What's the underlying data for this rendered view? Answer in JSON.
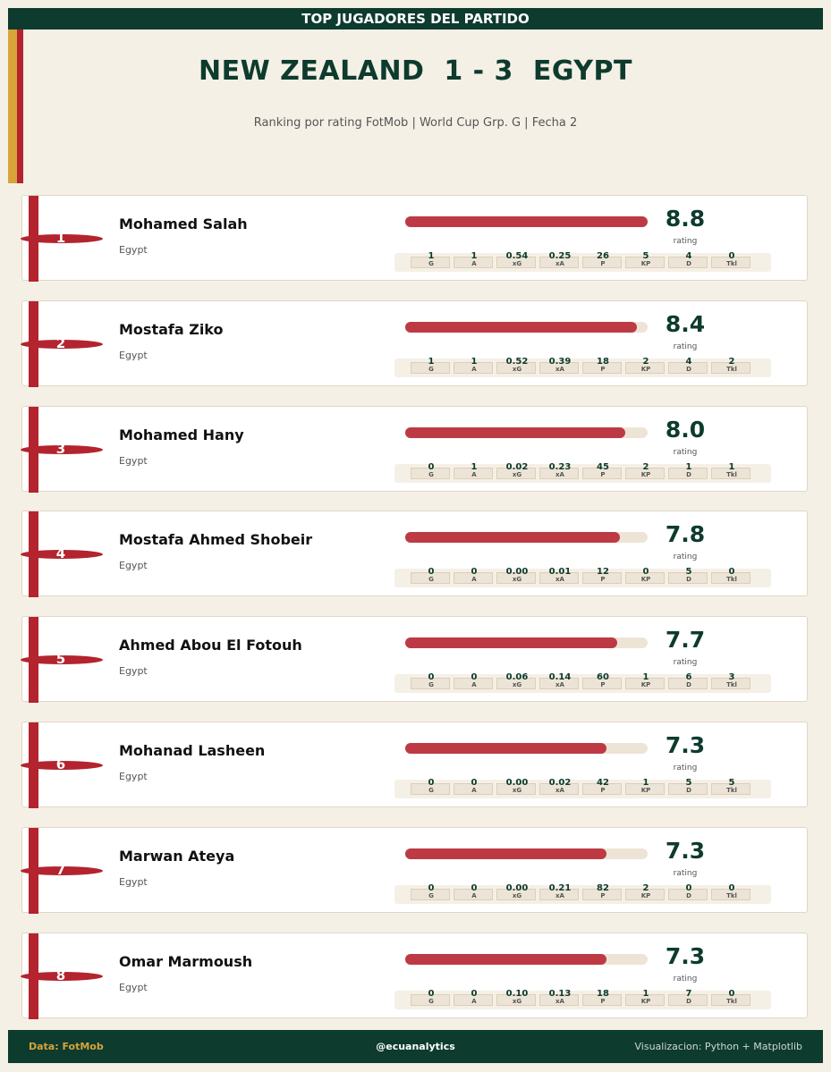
{
  "header": {
    "banner": "TOP JUGADORES DEL PARTIDO",
    "title": "NEW ZEALAND  1 - 3  EGYPT",
    "subtitle": "Ranking por rating FotMob | World Cup Grp. G | Fecha 2"
  },
  "colors": {
    "dark_green": "#0d3b2e",
    "red": "#b3242e",
    "gold": "#d9a33a",
    "bar": "#bd3a44",
    "background": "#f5f0e6"
  },
  "stat_labels": [
    "G",
    "A",
    "xG",
    "xA",
    "P",
    "KP",
    "D",
    "Tkl"
  ],
  "rating_label": "rating",
  "chart_data": {
    "type": "bar",
    "title": "NEW ZEALAND  1 - 3  EGYPT",
    "metric": "rating",
    "xlim": [
      0,
      8.8
    ],
    "categories": [
      "Mohamed Salah",
      "Mostafa Ziko",
      "Mohamed Hany",
      "Mostafa Ahmed Shobeir",
      "Ahmed Abou El Fotouh",
      "Mohanad Lasheen",
      "Marwan Ateya",
      "Omar Marmoush"
    ],
    "values": [
      8.8,
      8.4,
      8.0,
      7.8,
      7.7,
      7.3,
      7.3,
      7.3
    ],
    "players": [
      {
        "rank": "1",
        "name": "Mohamed Salah",
        "team": "Egypt",
        "rating": 8.8,
        "rating_text": "8.8",
        "stats": [
          "1",
          "1",
          "0.54",
          "0.25",
          "26",
          "5",
          "4",
          "0"
        ]
      },
      {
        "rank": "2",
        "name": "Mostafa Ziko",
        "team": "Egypt",
        "rating": 8.4,
        "rating_text": "8.4",
        "stats": [
          "1",
          "1",
          "0.52",
          "0.39",
          "18",
          "2",
          "4",
          "2"
        ]
      },
      {
        "rank": "3",
        "name": "Mohamed Hany",
        "team": "Egypt",
        "rating": 8.0,
        "rating_text": "8.0",
        "stats": [
          "0",
          "1",
          "0.02",
          "0.23",
          "45",
          "2",
          "1",
          "1"
        ]
      },
      {
        "rank": "4",
        "name": "Mostafa Ahmed Shobeir",
        "team": "Egypt",
        "rating": 7.8,
        "rating_text": "7.8",
        "stats": [
          "0",
          "0",
          "0.00",
          "0.01",
          "12",
          "0",
          "5",
          "0"
        ]
      },
      {
        "rank": "5",
        "name": "Ahmed Abou El Fotouh",
        "team": "Egypt",
        "rating": 7.7,
        "rating_text": "7.7",
        "stats": [
          "0",
          "0",
          "0.06",
          "0.14",
          "60",
          "1",
          "6",
          "3"
        ]
      },
      {
        "rank": "6",
        "name": "Mohanad Lasheen",
        "team": "Egypt",
        "rating": 7.3,
        "rating_text": "7.3",
        "stats": [
          "0",
          "0",
          "0.00",
          "0.02",
          "42",
          "1",
          "5",
          "5"
        ]
      },
      {
        "rank": "7",
        "name": "Marwan Ateya",
        "team": "Egypt",
        "rating": 7.3,
        "rating_text": "7.3",
        "stats": [
          "0",
          "0",
          "0.00",
          "0.21",
          "82",
          "2",
          "0",
          "0"
        ]
      },
      {
        "rank": "8",
        "name": "Omar Marmoush",
        "team": "Egypt",
        "rating": 7.3,
        "rating_text": "7.3",
        "stats": [
          "0",
          "0",
          "0.10",
          "0.13",
          "18",
          "1",
          "7",
          "0"
        ]
      }
    ]
  },
  "footer": {
    "source": "Data: FotMob",
    "handle": "@ecuanalytics",
    "credit": "Visualizacion: Python + Matplotlib"
  }
}
